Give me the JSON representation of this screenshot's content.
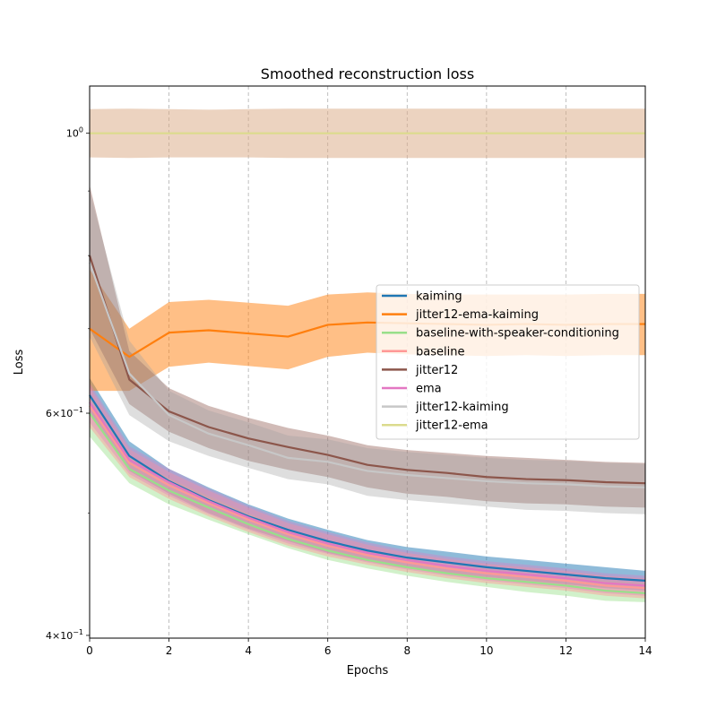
{
  "chart_data": {
    "type": "line",
    "title": "Smoothed reconstruction loss",
    "xlabel": "Epochs",
    "ylabel": "Loss",
    "xlim": [
      0,
      14
    ],
    "ylim": [
      0.398,
      1.09
    ],
    "yscale": "log",
    "grid": "vertical-dashed",
    "legend_position": "right",
    "x_ticks": [
      0,
      2,
      4,
      6,
      8,
      10,
      12,
      14
    ],
    "y_ticks": [
      {
        "value": 1.0,
        "label": "10^0",
        "base": "10",
        "exp": "0",
        "mant": ""
      },
      {
        "value": 0.6,
        "label": "6×10^-1",
        "base": "10",
        "exp": "−1",
        "mant": "6×"
      },
      {
        "value": 0.4,
        "label": "4×10^-1",
        "base": "10",
        "exp": "−1",
        "mant": "4×"
      }
    ],
    "y_minor_ticks": [
      0.5,
      0.7,
      0.8,
      0.9
    ],
    "x": [
      0,
      1,
      2,
      3,
      4,
      5,
      6,
      7,
      8,
      9,
      10,
      11,
      12,
      13,
      14
    ],
    "series": [
      {
        "name": "kaiming",
        "color": "#1f77b4",
        "band_color": "#1f77b4",
        "band_opacity": 0.5,
        "values": [
          0.62,
          0.555,
          0.53,
          0.512,
          0.497,
          0.485,
          0.475,
          0.467,
          0.461,
          0.457,
          0.453,
          0.45,
          0.447,
          0.444,
          0.442
        ],
        "lower": [
          0.6,
          0.54,
          0.518,
          0.5,
          0.486,
          0.475,
          0.465,
          0.458,
          0.452,
          0.448,
          0.445,
          0.442,
          0.439,
          0.436,
          0.434
        ],
        "upper": [
          0.64,
          0.57,
          0.542,
          0.524,
          0.508,
          0.495,
          0.485,
          0.476,
          0.47,
          0.466,
          0.462,
          0.459,
          0.456,
          0.453,
          0.45
        ]
      },
      {
        "name": "jitter12-ema-kaiming",
        "color": "#ff7f0e",
        "band_color": "#ff7f0e",
        "band_opacity": 0.5,
        "values": [
          0.7,
          0.665,
          0.695,
          0.698,
          0.694,
          0.69,
          0.705,
          0.708,
          0.707,
          0.706,
          0.705,
          0.706,
          0.705,
          0.706,
          0.706
        ],
        "lower": [
          0.625,
          0.625,
          0.653,
          0.658,
          0.654,
          0.65,
          0.665,
          0.67,
          0.668,
          0.667,
          0.666,
          0.667,
          0.666,
          0.667,
          0.667
        ],
        "upper": [
          0.78,
          0.7,
          0.735,
          0.738,
          0.734,
          0.73,
          0.745,
          0.748,
          0.746,
          0.745,
          0.745,
          0.745,
          0.745,
          0.746,
          0.746
        ]
      },
      {
        "name": "baseline-with-speaker-conditioning",
        "color": "#98df8a",
        "band_color": "#98df8a",
        "band_opacity": 0.45,
        "values": [
          0.6,
          0.542,
          0.521,
          0.505,
          0.49,
          0.477,
          0.467,
          0.459,
          0.453,
          0.448,
          0.444,
          0.441,
          0.438,
          0.434,
          0.432
        ],
        "lower": [
          0.575,
          0.528,
          0.508,
          0.494,
          0.481,
          0.469,
          0.459,
          0.452,
          0.446,
          0.441,
          0.437,
          0.433,
          0.43,
          0.426,
          0.425
        ],
        "upper": [
          0.62,
          0.555,
          0.533,
          0.516,
          0.5,
          0.486,
          0.475,
          0.467,
          0.46,
          0.455,
          0.451,
          0.448,
          0.445,
          0.442,
          0.44
        ]
      },
      {
        "name": "baseline",
        "color": "#ff9896",
        "band_color": "#ff9896",
        "band_opacity": 0.45,
        "values": [
          0.608,
          0.548,
          0.526,
          0.509,
          0.494,
          0.481,
          0.471,
          0.463,
          0.457,
          0.452,
          0.448,
          0.445,
          0.442,
          0.438,
          0.436
        ],
        "lower": [
          0.585,
          0.534,
          0.513,
          0.497,
          0.483,
          0.471,
          0.462,
          0.455,
          0.449,
          0.444,
          0.44,
          0.437,
          0.434,
          0.43,
          0.428
        ],
        "upper": [
          0.63,
          0.562,
          0.539,
          0.521,
          0.505,
          0.491,
          0.481,
          0.472,
          0.465,
          0.46,
          0.456,
          0.453,
          0.45,
          0.446,
          0.444
        ]
      },
      {
        "name": "jitter12",
        "color": "#8c564b",
        "band_color": "#8c564b",
        "band_opacity": 0.4,
        "values": [
          0.8,
          0.638,
          0.602,
          0.585,
          0.573,
          0.564,
          0.556,
          0.546,
          0.541,
          0.538,
          0.534,
          0.532,
          0.531,
          0.529,
          0.528
        ],
        "lower": [
          0.7,
          0.61,
          0.58,
          0.563,
          0.55,
          0.541,
          0.534,
          0.524,
          0.518,
          0.515,
          0.511,
          0.509,
          0.508,
          0.506,
          0.505
        ],
        "upper": [
          0.91,
          0.672,
          0.628,
          0.608,
          0.595,
          0.584,
          0.576,
          0.566,
          0.561,
          0.558,
          0.555,
          0.553,
          0.551,
          0.549,
          0.548
        ]
      },
      {
        "name": "ema",
        "color": "#e377c2",
        "band_color": "#e377c2",
        "band_opacity": 0.35,
        "values": [
          0.612,
          0.551,
          0.529,
          0.511,
          0.496,
          0.483,
          0.473,
          0.465,
          0.459,
          0.454,
          0.45,
          0.447,
          0.444,
          0.44,
          0.438
        ],
        "lower": [
          0.59,
          0.537,
          0.516,
          0.499,
          0.485,
          0.473,
          0.464,
          0.457,
          0.451,
          0.446,
          0.442,
          0.439,
          0.436,
          0.432,
          0.43
        ],
        "upper": [
          0.634,
          0.565,
          0.542,
          0.523,
          0.507,
          0.493,
          0.483,
          0.474,
          0.467,
          0.462,
          0.458,
          0.455,
          0.452,
          0.448,
          0.446
        ]
      },
      {
        "name": "jitter12-kaiming",
        "color": "#c7c7c7",
        "band_color": "#a0a0a0",
        "band_opacity": 0.35,
        "values": [
          0.79,
          0.645,
          0.598,
          0.578,
          0.566,
          0.553,
          0.549,
          0.54,
          0.536,
          0.533,
          0.53,
          0.528,
          0.527,
          0.525,
          0.524
        ],
        "lower": [
          0.69,
          0.598,
          0.57,
          0.555,
          0.543,
          0.532,
          0.527,
          0.516,
          0.512,
          0.509,
          0.506,
          0.503,
          0.502,
          0.5,
          0.499
        ],
        "upper": [
          0.9,
          0.685,
          0.625,
          0.603,
          0.59,
          0.576,
          0.572,
          0.563,
          0.559,
          0.556,
          0.553,
          0.551,
          0.55,
          0.548,
          0.547
        ]
      },
      {
        "name": "jitter12-ema",
        "color": "#dbdb8d",
        "band_color": "#d9a881",
        "band_opacity": 0.5,
        "values": [
          1.0,
          1.0,
          1.0,
          1.0,
          1.0,
          1.0,
          1.0,
          1.0,
          1.0,
          1.0,
          1.0,
          1.0,
          1.0,
          1.0,
          1.0
        ],
        "lower": [
          0.957,
          0.956,
          0.957,
          0.957,
          0.957,
          0.956,
          0.956,
          0.956,
          0.956,
          0.956,
          0.956,
          0.956,
          0.956,
          0.956,
          0.956
        ],
        "upper": [
          1.045,
          1.046,
          1.045,
          1.044,
          1.045,
          1.046,
          1.046,
          1.046,
          1.046,
          1.046,
          1.046,
          1.046,
          1.046,
          1.046,
          1.046
        ]
      }
    ]
  }
}
